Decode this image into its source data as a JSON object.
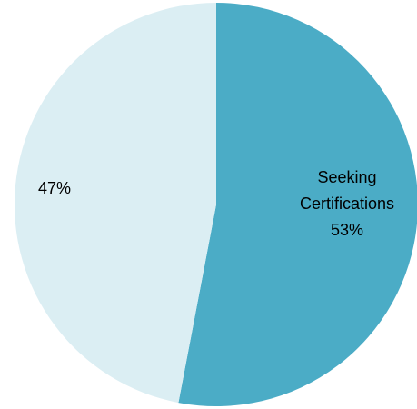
{
  "chart_data": {
    "type": "pie",
    "slices": [
      {
        "name": "Seeking Certifications",
        "value": 53,
        "label_lines": [
          "Seeking",
          "Certifications",
          "53%"
        ],
        "color": "#4bacc6"
      },
      {
        "name": "",
        "value": 47,
        "label_lines": [
          "47%"
        ],
        "color": "#dbeef3"
      }
    ],
    "start_angle": "12 o'clock",
    "direction": "clockwise",
    "legend": "none"
  }
}
